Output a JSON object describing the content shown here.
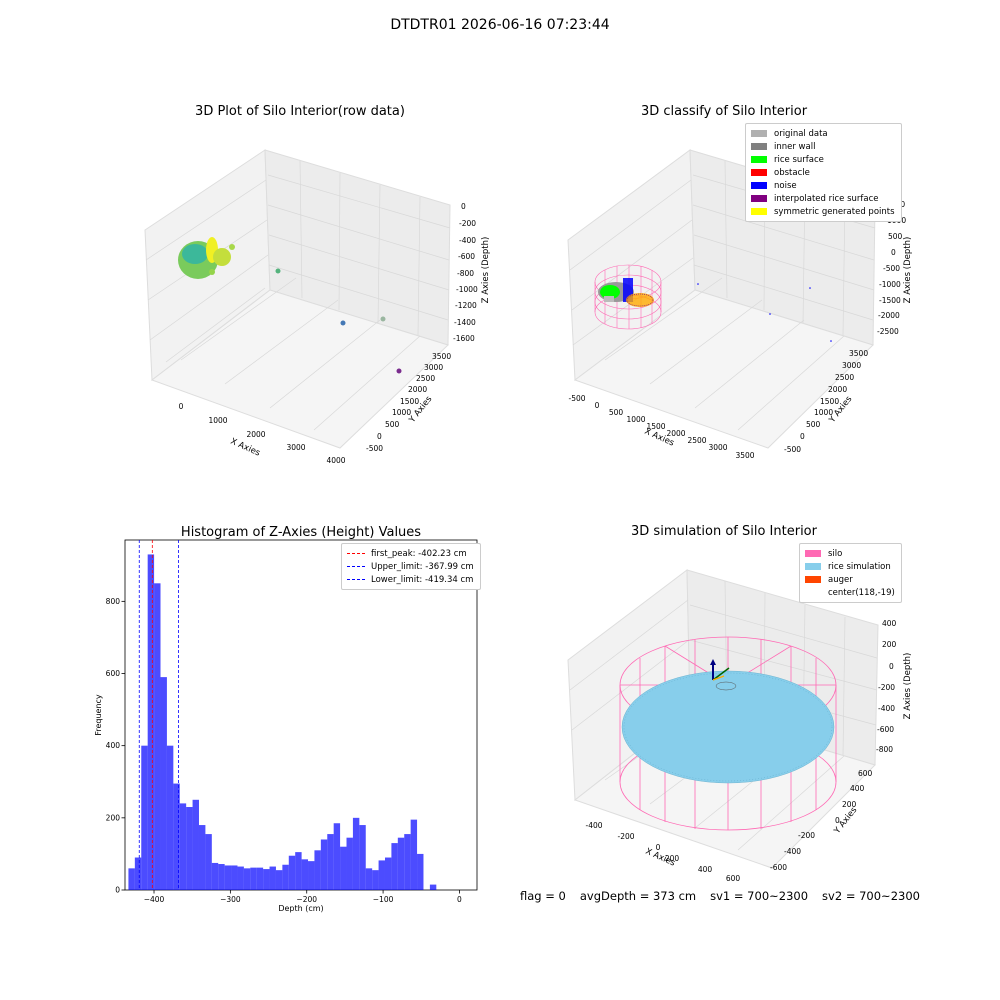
{
  "suptitle": "DTDTR01 2026-06-16 07:23:44",
  "panels": {
    "raw": {
      "title": "3D Plot of Silo Interior(row data)",
      "xlabel": "X Axies",
      "ylabel": "Y Axies",
      "zlabel": "Z Axies (Depth)",
      "xticks": [
        "0",
        "1000",
        "2000",
        "3000",
        "4000"
      ],
      "yticks": [
        "-500",
        "0",
        "500",
        "1000",
        "1500",
        "2000",
        "2500",
        "3000",
        "3500"
      ],
      "zticks": [
        "0",
        "-200",
        "-400",
        "-600",
        "-800",
        "-1000",
        "-1200",
        "-1400",
        "-1600"
      ]
    },
    "classify": {
      "title": "3D classify of Silo Interior",
      "xlabel": "X Axies",
      "ylabel": "Y Axies",
      "zlabel": "Z Axies (Depth)",
      "xticks": [
        "-500",
        "0",
        "500",
        "1000",
        "1500",
        "2000",
        "2500",
        "3000",
        "3500"
      ],
      "yticks": [
        "-500",
        "0",
        "500",
        "1000",
        "1500",
        "2000",
        "2500",
        "3000",
        "3500"
      ],
      "zticks": [
        "1500",
        "1000",
        "500",
        "0",
        "-500",
        "-1000",
        "-1500",
        "-2000",
        "-2500"
      ],
      "legend": [
        {
          "label": "original data",
          "color": "#b0b0b0"
        },
        {
          "label": "inner wall",
          "color": "#808080"
        },
        {
          "label": "rice surface",
          "color": "#00ff00"
        },
        {
          "label": "obstacle",
          "color": "#ff0000"
        },
        {
          "label": "noise",
          "color": "#0000ff"
        },
        {
          "label": "interpolated rice surface",
          "color": "#800080"
        },
        {
          "label": "symmetric generated points",
          "color": "#ffff00"
        }
      ]
    },
    "simulation": {
      "title": "3D simulation of Silo Interior",
      "xlabel": "X Axies",
      "ylabel": "Y Axies",
      "zlabel": "Z Axies (Depth)",
      "xticks": [
        "-400",
        "-200",
        "0",
        "200",
        "400",
        "600"
      ],
      "yticks": [
        "-600",
        "-400",
        "-200",
        "0",
        "200",
        "400",
        "600"
      ],
      "zticks": [
        "400",
        "200",
        "0",
        "-200",
        "-400",
        "-600",
        "-800"
      ],
      "legend": [
        {
          "label": "silo",
          "color": "#ff69b4"
        },
        {
          "label": "rice simulation",
          "color": "#87ceeb"
        },
        {
          "label": "auger",
          "color": "#ff4500"
        },
        {
          "label": "center(118,-19)",
          "color": ""
        }
      ]
    }
  },
  "chart_data": {
    "type": "bar",
    "title": "Histogram of Z-Axies (Height) Values",
    "xlabel": "Depth (cm)",
    "ylabel": "Frequency",
    "xlim": [
      -438,
      23
    ],
    "ylim": [
      0,
      970
    ],
    "xticks": [
      -400,
      -300,
      -200,
      -100,
      0
    ],
    "yticks": [
      0,
      200,
      400,
      600,
      800
    ],
    "bin_start": -433.5,
    "bin_width": 8.4,
    "values": [
      60,
      90,
      400,
      930,
      850,
      590,
      400,
      295,
      240,
      230,
      250,
      180,
      155,
      75,
      72,
      68,
      68,
      65,
      60,
      62,
      62,
      58,
      65,
      55,
      70,
      95,
      105,
      85,
      80,
      110,
      140,
      155,
      185,
      120,
      145,
      200,
      180,
      60,
      55,
      82,
      90,
      130,
      145,
      155,
      195,
      100,
      0,
      15
    ],
    "color": "#0000ff",
    "vlines": [
      {
        "label": "first_peak: -402.23 cm",
        "x": -402.23,
        "color": "#ff0000"
      },
      {
        "label": "Upper_limit: -367.99 cm",
        "x": -367.99,
        "color": "#0000ff"
      },
      {
        "label": "Lower_limit: -419.34 cm",
        "x": -419.34,
        "color": "#0000ff"
      }
    ],
    "legend_position": "top-right"
  },
  "footer": {
    "flag": "flag = 0",
    "avg": "avgDepth = 373 cm",
    "sv1": "sv1 = 700~2300",
    "sv2": "sv2 = 700~2300"
  }
}
